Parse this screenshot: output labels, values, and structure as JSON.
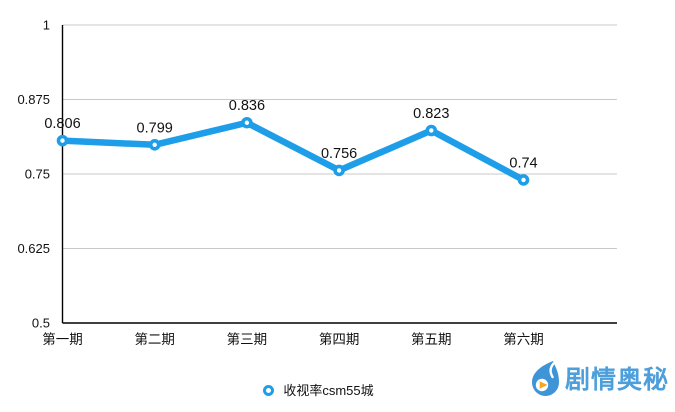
{
  "chart_data": {
    "type": "line",
    "title": "",
    "xlabel": "",
    "ylabel": "",
    "categories": [
      "第一期",
      "第二期",
      "第三期",
      "第四期",
      "第五期",
      "第六期"
    ],
    "series": [
      {
        "name": "收视率csm55城",
        "values": [
          0.806,
          0.799,
          0.836,
          0.756,
          0.823,
          0.74
        ],
        "data_labels": [
          "0.806",
          "0.799",
          "0.836",
          "0.756",
          "0.823",
          "0.74"
        ]
      }
    ],
    "ylim": [
      0.5,
      1
    ],
    "yticks": [
      1,
      0.875,
      0.75,
      0.625,
      0.5
    ],
    "ytick_labels": [
      "1",
      "0.875",
      "0.75",
      "0.625",
      "0.5"
    ],
    "grid": true,
    "legend_position": "bottom",
    "colors": {
      "line": "#1e9ee8",
      "marker_fill": "#ffffff",
      "grid": "#c9c9c9",
      "axis": "#000000",
      "text": "#111111"
    }
  },
  "legend": {
    "label": "收视率csm55城"
  },
  "watermark": {
    "text": "剧情奥秘",
    "text_color": "#4d9fdb",
    "icon_color": "#3d95d8",
    "play_color": "#f5a623"
  }
}
